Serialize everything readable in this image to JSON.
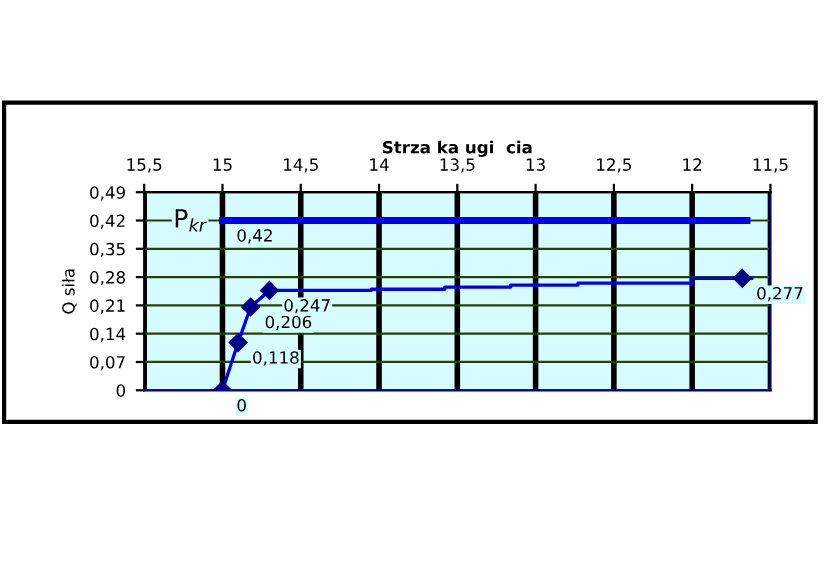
{
  "chart_data": {
    "type": "line",
    "title": "Strza ka ugi  cia",
    "ylabel": "Q siła",
    "xlim": [
      15.5,
      11.5
    ],
    "xticks": [
      {
        "value": 15.5,
        "label": "15,5"
      },
      {
        "value": 15,
        "label": "15"
      },
      {
        "value": 14.5,
        "label": "14,5"
      },
      {
        "value": 14,
        "label": "14"
      },
      {
        "value": 13.5,
        "label": "13,5"
      },
      {
        "value": 13,
        "label": "13"
      },
      {
        "value": 12.5,
        "label": "12,5"
      },
      {
        "value": 12,
        "label": "12"
      },
      {
        "value": 11.5,
        "label": "11,5"
      }
    ],
    "ylim": [
      0,
      0.49
    ],
    "yticks": [
      0,
      {
        "value": 0.07,
        "label": "0,07"
      },
      {
        "value": 0.14,
        "label": "0,14"
      },
      {
        "value": 0.21,
        "label": "0,21"
      },
      {
        "value": 0.28,
        "label": "0,28"
      },
      {
        "value": 0.35,
        "label": "0,35"
      },
      {
        "value": 0.42,
        "label": "0,42"
      },
      {
        "value": 0.49,
        "label": "0,49"
      }
    ],
    "grid": true,
    "legend": false,
    "series": [
      {
        "name": "P$_{kr}$",
        "color": "#0000ee",
        "x": [
          15,
          11.65
        ],
        "values": [
          0.42,
          0.42
        ],
        "value_labels": [
          "0,42",
          null
        ],
        "marker": "none"
      },
      {
        "color": "#0000ee",
        "x": [
          15,
          14.9,
          14.82,
          14.7,
          14.05,
          14.05,
          13.58,
          13.58,
          13.16,
          13.16,
          12.73,
          12.73,
          12.0,
          12.0,
          11.68,
          11.62
        ],
        "values": [
          0,
          0.118,
          0.206,
          0.247,
          0.247,
          0.25,
          0.25,
          0.255,
          0.255,
          0.26,
          0.26,
          0.265,
          0.265,
          0.277,
          0.277,
          0.277
        ],
        "marker": "none"
      },
      {
        "type": "scatter",
        "color": "#000088",
        "x": [
          15,
          14.9,
          14.82,
          14.7,
          11.68
        ],
        "values": [
          0,
          0.118,
          0.206,
          0.247,
          0.277
        ],
        "value_labels": [
          "0",
          "0,118",
          "0,206",
          "0,247",
          "0,277"
        ],
        "marker": "diamond"
      }
    ]
  }
}
